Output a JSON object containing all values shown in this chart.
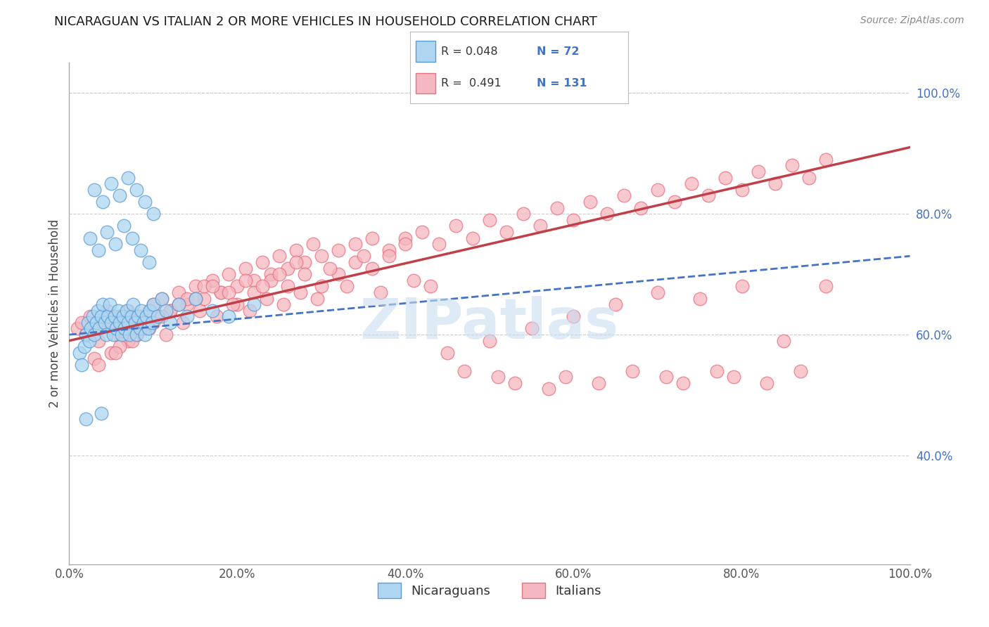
{
  "title": "NICARAGUAN VS ITALIAN 2 OR MORE VEHICLES IN HOUSEHOLD CORRELATION CHART",
  "source": "Source: ZipAtlas.com",
  "ylabel": "2 or more Vehicles in Household",
  "xlim": [
    0.0,
    100.0
  ],
  "ylim": [
    22.0,
    105.0
  ],
  "xticks": [
    0.0,
    20.0,
    40.0,
    60.0,
    80.0,
    100.0
  ],
  "yticks": [
    40.0,
    60.0,
    80.0,
    100.0
  ],
  "xticklabels": [
    "0.0%",
    "20.0%",
    "40.0%",
    "60.0%",
    "80.0%",
    "100.0%"
  ],
  "yticklabels": [
    "40.0%",
    "60.0%",
    "80.0%",
    "100.0%"
  ],
  "blue_scatter_face": "#AED6F1",
  "blue_scatter_edge": "#5B9BD5",
  "pink_scatter_face": "#F5B7C0",
  "pink_scatter_edge": "#E87080",
  "blue_line_color": "#4472C4",
  "pink_line_color": "#C0404A",
  "watermark_color": "#C8DCF0",
  "background_color": "#FFFFFF",
  "grid_color": "#CCCCCC",
  "title_fontsize": 13,
  "source_fontsize": 10,
  "tick_fontsize": 12,
  "ylabel_fontsize": 12,
  "nic_x": [
    1.2,
    1.5,
    1.8,
    2.0,
    2.2,
    2.4,
    2.6,
    2.8,
    3.0,
    3.2,
    3.4,
    3.6,
    3.8,
    4.0,
    4.2,
    4.4,
    4.6,
    4.8,
    5.0,
    5.2,
    5.4,
    5.6,
    5.8,
    6.0,
    6.2,
    6.4,
    6.6,
    6.8,
    7.0,
    7.2,
    7.4,
    7.6,
    7.8,
    8.0,
    8.2,
    8.4,
    8.6,
    8.8,
    9.0,
    9.2,
    9.4,
    9.6,
    9.8,
    10.0,
    10.5,
    11.0,
    11.5,
    12.0,
    13.0,
    14.0,
    15.0,
    17.0,
    19.0,
    22.0,
    2.5,
    3.5,
    4.5,
    5.5,
    6.5,
    7.5,
    8.5,
    9.5,
    3.0,
    4.0,
    5.0,
    6.0,
    7.0,
    8.0,
    9.0,
    10.0,
    2.0,
    3.8
  ],
  "nic_y": [
    57,
    55,
    58,
    60,
    62,
    59,
    61,
    63,
    60,
    62,
    64,
    61,
    63,
    65,
    62,
    60,
    63,
    65,
    62,
    60,
    63,
    61,
    64,
    62,
    60,
    63,
    61,
    64,
    62,
    60,
    63,
    65,
    62,
    60,
    63,
    61,
    64,
    62,
    60,
    63,
    61,
    64,
    62,
    65,
    63,
    66,
    64,
    62,
    65,
    63,
    66,
    64,
    63,
    65,
    76,
    74,
    77,
    75,
    78,
    76,
    74,
    72,
    84,
    82,
    85,
    83,
    86,
    84,
    82,
    80,
    46,
    47
  ],
  "ita_x": [
    1.0,
    1.5,
    2.0,
    2.5,
    3.0,
    3.5,
    4.0,
    4.5,
    5.0,
    5.5,
    6.0,
    6.5,
    7.0,
    7.5,
    8.0,
    8.5,
    9.0,
    9.5,
    10.0,
    11.0,
    12.0,
    13.0,
    14.0,
    15.0,
    16.0,
    17.0,
    18.0,
    19.0,
    20.0,
    21.0,
    22.0,
    23.0,
    24.0,
    25.0,
    26.0,
    27.0,
    28.0,
    29.0,
    30.0,
    32.0,
    34.0,
    36.0,
    38.0,
    40.0,
    42.0,
    44.0,
    46.0,
    48.0,
    50.0,
    52.0,
    54.0,
    56.0,
    58.0,
    60.0,
    62.0,
    64.0,
    66.0,
    68.0,
    70.0,
    72.0,
    74.0,
    76.0,
    78.0,
    80.0,
    82.0,
    84.0,
    86.0,
    88.0,
    90.0,
    10.0,
    12.0,
    14.0,
    16.0,
    18.0,
    20.0,
    22.0,
    24.0,
    26.0,
    28.0,
    30.0,
    32.0,
    34.0,
    36.0,
    38.0,
    5.0,
    7.0,
    9.0,
    11.0,
    13.0,
    3.0,
    6.0,
    8.0,
    15.0,
    17.0,
    19.0,
    21.0,
    23.0,
    25.0,
    27.0,
    31.0,
    35.0,
    40.0,
    45.0,
    50.0,
    55.0,
    60.0,
    65.0,
    70.0,
    75.0,
    80.0,
    85.0,
    90.0,
    3.5,
    5.5,
    7.5,
    9.5,
    11.5,
    13.5,
    15.5,
    17.5,
    19.5,
    21.5,
    23.5,
    25.5,
    27.5,
    29.5,
    33.0,
    37.0,
    41.0,
    43.0,
    47.0,
    51.0,
    53.0,
    57.0,
    59.0,
    63.0,
    67.0,
    71.0,
    73.0,
    77.0,
    79.0,
    83.0,
    87.0
  ],
  "ita_y": [
    61,
    62,
    60,
    63,
    61,
    59,
    62,
    64,
    62,
    60,
    63,
    61,
    64,
    62,
    60,
    63,
    61,
    64,
    65,
    66,
    64,
    67,
    65,
    68,
    66,
    69,
    67,
    70,
    68,
    71,
    69,
    72,
    70,
    73,
    71,
    74,
    72,
    75,
    73,
    74,
    75,
    76,
    74,
    76,
    77,
    75,
    78,
    76,
    79,
    77,
    80,
    78,
    81,
    79,
    82,
    80,
    83,
    81,
    84,
    82,
    85,
    83,
    86,
    84,
    87,
    85,
    88,
    86,
    89,
    62,
    64,
    66,
    68,
    67,
    65,
    67,
    69,
    68,
    70,
    68,
    70,
    72,
    71,
    73,
    57,
    59,
    61,
    63,
    65,
    56,
    58,
    60,
    66,
    68,
    67,
    69,
    68,
    70,
    72,
    71,
    73,
    75,
    57,
    59,
    61,
    63,
    65,
    67,
    66,
    68,
    59,
    68,
    55,
    57,
    59,
    61,
    60,
    62,
    64,
    63,
    65,
    64,
    66,
    65,
    67,
    66,
    68,
    67,
    69,
    68,
    54,
    53,
    52,
    51,
    53,
    52,
    54,
    53,
    52,
    54,
    53,
    52,
    54
  ]
}
